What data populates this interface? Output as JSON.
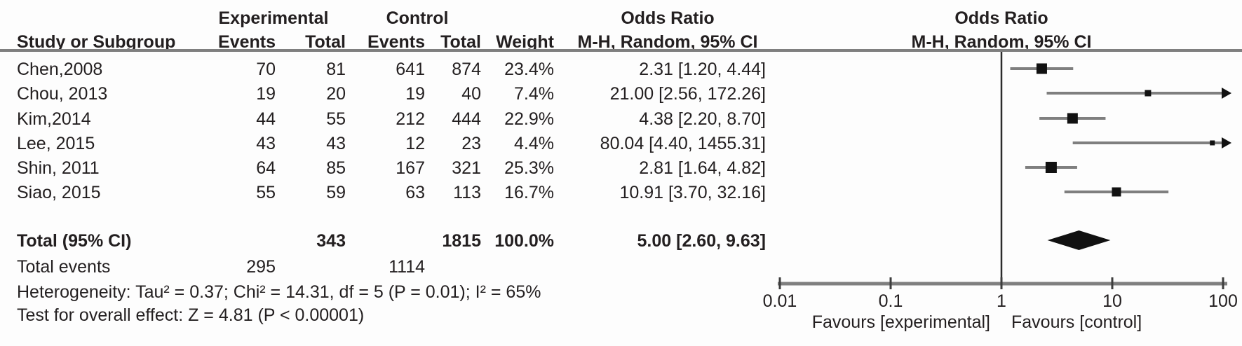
{
  "colors": {
    "text": "#231f20",
    "gray_line": "#7f7f7f",
    "tick": "#3d3d3d",
    "marker": "#111111",
    "background": "#fdfdfd"
  },
  "header": {
    "group_experimental": "Experimental",
    "group_control": "Control",
    "odds_ratio_text_col": "Odds Ratio",
    "odds_ratio_plot_col": "Odds Ratio",
    "study_or_subgroup": "Study or Subgroup",
    "exp_events": "Events",
    "exp_total": "Total",
    "ctrl_events": "Events",
    "ctrl_total": "Total",
    "weight": "Weight",
    "mh_random_text_col": "M-H, Random, 95% CI",
    "mh_random_plot_col": "M-H, Random, 95% CI"
  },
  "rows": [
    {
      "study": "Chen,2008",
      "exp_events": "70",
      "exp_total": "81",
      "ctrl_events": "641",
      "ctrl_total": "874",
      "weight": "23.4%",
      "ci": "2.31 [1.20, 4.44]"
    },
    {
      "study": "Chou, 2013",
      "exp_events": "19",
      "exp_total": "20",
      "ctrl_events": "19",
      "ctrl_total": "40",
      "weight": "7.4%",
      "ci": "21.00 [2.56, 172.26]"
    },
    {
      "study": "Kim,2014",
      "exp_events": "44",
      "exp_total": "55",
      "ctrl_events": "212",
      "ctrl_total": "444",
      "weight": "22.9%",
      "ci": "4.38 [2.20, 8.70]"
    },
    {
      "study": "Lee, 2015",
      "exp_events": "43",
      "exp_total": "43",
      "ctrl_events": "12",
      "ctrl_total": "23",
      "weight": "4.4%",
      "ci": "80.04 [4.40, 1455.31]"
    },
    {
      "study": "Shin, 2011",
      "exp_events": "64",
      "exp_total": "85",
      "ctrl_events": "167",
      "ctrl_total": "321",
      "weight": "25.3%",
      "ci": "2.81 [1.64, 4.82]"
    },
    {
      "study": "Siao, 2015",
      "exp_events": "55",
      "exp_total": "59",
      "ctrl_events": "63",
      "ctrl_total": "113",
      "weight": "16.7%",
      "ci": "10.91 [3.70, 32.16]"
    }
  ],
  "totals": {
    "label": "Total (95% CI)",
    "exp_total": "343",
    "ctrl_total": "1815",
    "weight": "100.0%",
    "ci": "5.00 [2.60, 9.63]",
    "events_label": "Total events",
    "exp_events": "295",
    "ctrl_events": "1114"
  },
  "footnotes": {
    "heterogeneity": "Heterogeneity: Tau² = 0.37; Chi² = 14.31, df = 5 (P = 0.01); I² = 65%",
    "overall_effect": "Test for overall effect: Z = 4.81 (P < 0.00001)"
  },
  "chart_data": {
    "type": "scatter",
    "subtype": "forest-plot",
    "effect_measure": "Odds Ratio (M-H, Random, 95% CI)",
    "x_scale": "log10",
    "x_ticks": [
      0.01,
      0.1,
      1,
      10,
      100
    ],
    "x_tick_labels": [
      "0.01",
      "0.1",
      "1",
      "10",
      "100"
    ],
    "xlim": [
      0.01,
      100
    ],
    "null_line": 1,
    "favours_left": "Favours [experimental]",
    "favours_right": "Favours [control]",
    "studies": [
      {
        "name": "Chen,2008",
        "or": 2.31,
        "ci_low": 1.2,
        "ci_high": 4.44,
        "weight_pct": 23.4
      },
      {
        "name": "Chou, 2013",
        "or": 21.0,
        "ci_low": 2.56,
        "ci_high": 172.26,
        "weight_pct": 7.4
      },
      {
        "name": "Kim,2014",
        "or": 4.38,
        "ci_low": 2.2,
        "ci_high": 8.7,
        "weight_pct": 22.9
      },
      {
        "name": "Lee, 2015",
        "or": 80.04,
        "ci_low": 4.4,
        "ci_high": 1455.31,
        "weight_pct": 4.4
      },
      {
        "name": "Shin, 2011",
        "or": 2.81,
        "ci_low": 1.64,
        "ci_high": 4.82,
        "weight_pct": 25.3
      },
      {
        "name": "Siao, 2015",
        "or": 10.91,
        "ci_low": 3.7,
        "ci_high": 32.16,
        "weight_pct": 16.7
      }
    ],
    "pooled": {
      "or": 5.0,
      "ci_low": 2.6,
      "ci_high": 9.63
    }
  }
}
